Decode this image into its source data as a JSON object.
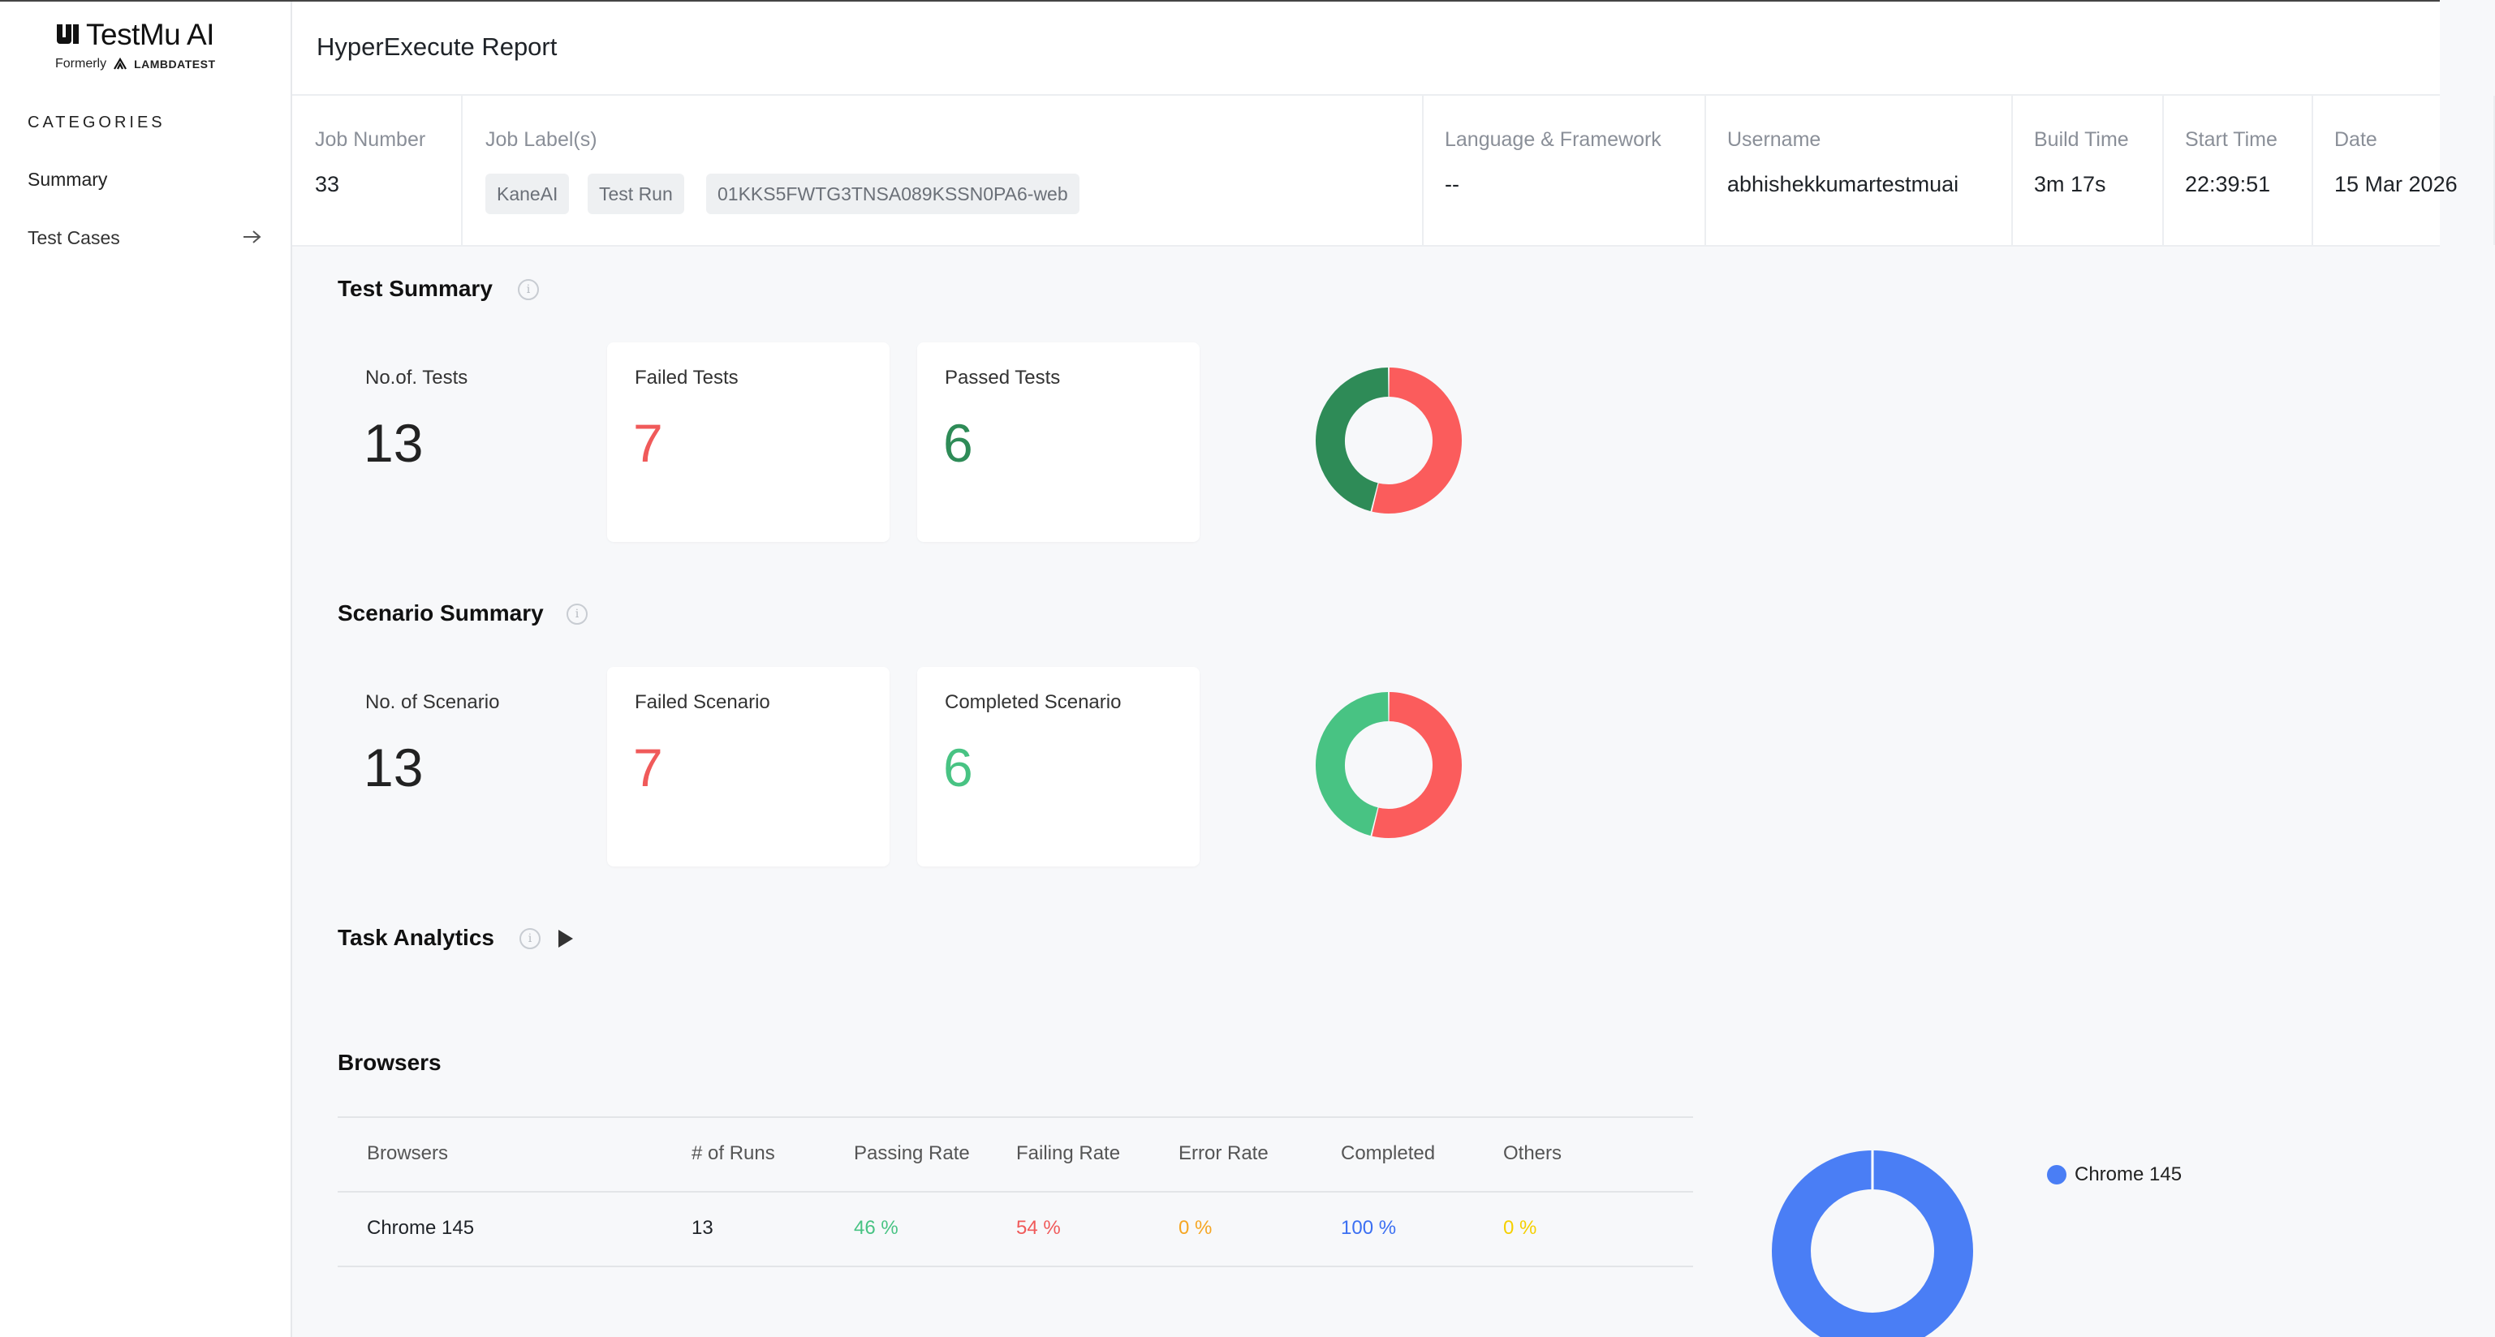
{
  "brand": {
    "name": "TestMu AI",
    "formerly": "Formerly",
    "former_brand": "LAMBDATEST"
  },
  "sidebar": {
    "categories_title": "CATEGORIES",
    "items": [
      {
        "label": "Summary"
      },
      {
        "label": "Test Cases"
      }
    ]
  },
  "header": {
    "title": "HyperExecute Report"
  },
  "info": {
    "job_number": {
      "label": "Job Number",
      "value": "33"
    },
    "job_labels": {
      "label": "Job Label(s)",
      "chips": [
        "KaneAI",
        "Test Run",
        "01KKS5FWTG3TNSA089KSSN0PA6-web"
      ]
    },
    "language": {
      "label": "Language & Framework",
      "value": "--"
    },
    "username": {
      "label": "Username",
      "value": "abhishekkumartestmuai"
    },
    "build_time": {
      "label": "Build Time",
      "value": "3m 17s"
    },
    "start_time": {
      "label": "Start Time",
      "value": "22:39:51"
    },
    "date": {
      "label": "Date",
      "value": "15 Mar 2026"
    }
  },
  "test_summary": {
    "title": "Test Summary",
    "total": {
      "label": "No.of. Tests",
      "value": "13"
    },
    "failed": {
      "label": "Failed Tests",
      "value": "7"
    },
    "passed": {
      "label": "Passed Tests",
      "value": "6"
    }
  },
  "scenario_summary": {
    "title": "Scenario Summary",
    "total": {
      "label": "No. of Scenario",
      "value": "13"
    },
    "failed": {
      "label": "Failed Scenario",
      "value": "7"
    },
    "completed": {
      "label": "Completed Scenario",
      "value": "6"
    }
  },
  "task_analytics": {
    "title": "Task Analytics"
  },
  "browsers": {
    "title": "Browsers",
    "columns": [
      "Browsers",
      "# of Runs",
      "Passing Rate",
      "Failing Rate",
      "Error Rate",
      "Completed",
      "Others"
    ],
    "rows": [
      {
        "browser": "Chrome 145",
        "runs": "13",
        "passing": "46 %",
        "failing": "54 %",
        "error": "0 %",
        "completed": "100 %",
        "others": "0 %"
      }
    ],
    "legend": [
      {
        "label": "Chrome 145",
        "color": "#4a7ef5"
      }
    ]
  },
  "colors": {
    "failed": "#fb5c5c",
    "passed": "#2e8b57",
    "completed": "#48c383",
    "chrome": "#4a7ef5"
  },
  "chart_data": [
    {
      "type": "pie",
      "categories": [
        "Failed",
        "Passed"
      ],
      "values": [
        7,
        6
      ],
      "colors": [
        "#fb5c5c",
        "#2e8b57"
      ]
    },
    {
      "type": "pie",
      "categories": [
        "Failed",
        "Completed"
      ],
      "values": [
        7,
        6
      ],
      "colors": [
        "#fb5c5c",
        "#48c383"
      ]
    },
    {
      "type": "pie",
      "categories": [
        "Chrome 145"
      ],
      "values": [
        13
      ],
      "colors": [
        "#4a7ef5"
      ]
    }
  ]
}
